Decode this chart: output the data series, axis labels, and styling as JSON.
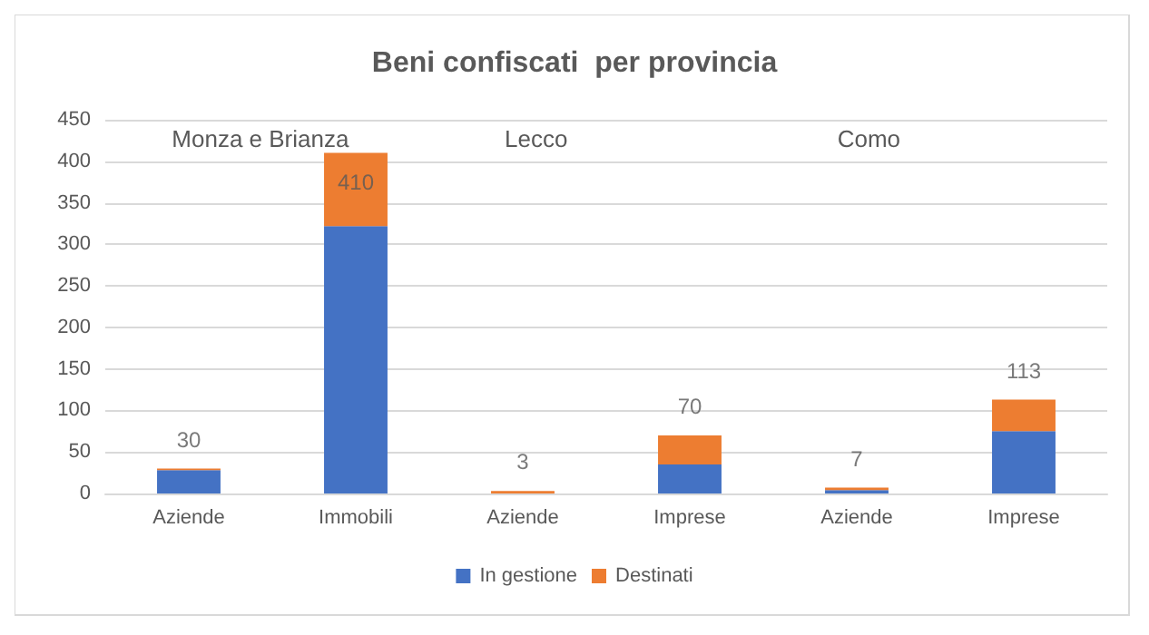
{
  "chart_data": {
    "type": "bar",
    "title": "Beni confiscati  per provincia",
    "categories": [
      "Aziende",
      "Immobili",
      "Aziende",
      "Imprese",
      "Aziende",
      "Imprese"
    ],
    "series": [
      {
        "name": "In gestione",
        "color": "#4472c4",
        "values": [
          28,
          322,
          0,
          35,
          4,
          75
        ]
      },
      {
        "name": "Destinati",
        "color": "#ed7d31",
        "values": [
          2,
          88,
          3,
          35,
          3,
          38
        ]
      }
    ],
    "stacked": true,
    "totals": [
      "30",
      "410",
      "3",
      "70",
      "7",
      "113"
    ],
    "ylim": [
      0,
      450
    ],
    "yticks": [
      0,
      50,
      100,
      150,
      200,
      250,
      300,
      350,
      400,
      450
    ],
    "annotations": [
      "Monza e Brianza",
      "Lecco",
      "Como"
    ],
    "grid": "y",
    "legend": "bottom"
  }
}
